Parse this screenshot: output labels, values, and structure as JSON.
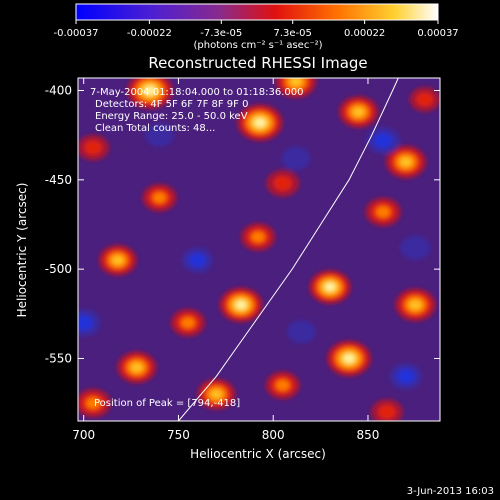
{
  "chart_data": {
    "type": "heatmap",
    "title": "Reconstructed RHESSI Image",
    "xlabel": "Heliocentric X (arcsec)",
    "ylabel": "Heliocentric Y (arcsec)",
    "xlim": [
      697,
      888
    ],
    "ylim": [
      -585,
      -393
    ],
    "xticks": [
      700,
      750,
      800,
      850
    ],
    "yticks": [
      -400,
      -450,
      -500,
      -550
    ],
    "colorbar": {
      "range": [
        -0.00037,
        0.00037
      ],
      "ticks": [
        -0.00037,
        -0.00022,
        -7.3e-05,
        7.3e-05,
        0.00022,
        0.00037
      ],
      "tick_labels": [
        "-0.00037",
        "-0.00022",
        "-7.3e-05",
        "7.3e-05",
        "0.00022",
        "0.00037"
      ],
      "units": "(photons cm⁻² s⁻¹ asec⁻²)",
      "colors": [
        "#0000ff",
        "#6a2fc8",
        "#9a2a6a",
        "#e01010",
        "#ff8000",
        "#ffe040",
        "#ffffff"
      ]
    },
    "info_lines": [
      "7-May-2004 01:18:04.000 to 01:18:36.000",
      "Detectors: 4F 5F 6F 7F 8F 9F 0",
      "Energy Range: 25.0 - 50.0 keV",
      "Clean    Total counts: 48..."
    ],
    "peak_label": "Position of Peak = [794,-418]",
    "peak": [
      794,
      -418
    ],
    "limb_curve": [
      [
        750,
        -585
      ],
      [
        770,
        -560
      ],
      [
        790,
        -530
      ],
      [
        810,
        -500
      ],
      [
        825,
        -475
      ],
      [
        840,
        -450
      ],
      [
        852,
        -425
      ],
      [
        863,
        -400
      ],
      [
        866,
        -393
      ]
    ],
    "hotspots": [
      {
        "x": 735,
        "y": -400,
        "v": 1.0
      },
      {
        "x": 793,
        "y": -418,
        "v": 1.0
      },
      {
        "x": 812,
        "y": -395,
        "v": 0.8
      },
      {
        "x": 740,
        "y": -460,
        "v": 0.55
      },
      {
        "x": 705,
        "y": -432,
        "v": 0.45
      },
      {
        "x": 805,
        "y": -452,
        "v": 0.5
      },
      {
        "x": 845,
        "y": -412,
        "v": 0.75
      },
      {
        "x": 870,
        "y": -440,
        "v": 0.8
      },
      {
        "x": 858,
        "y": -468,
        "v": 0.6
      },
      {
        "x": 718,
        "y": -495,
        "v": 0.7
      },
      {
        "x": 792,
        "y": -482,
        "v": 0.55
      },
      {
        "x": 830,
        "y": -510,
        "v": 0.85
      },
      {
        "x": 783,
        "y": -520,
        "v": 0.9
      },
      {
        "x": 755,
        "y": -530,
        "v": 0.55
      },
      {
        "x": 875,
        "y": -520,
        "v": 0.8
      },
      {
        "x": 728,
        "y": -555,
        "v": 0.75
      },
      {
        "x": 705,
        "y": -575,
        "v": 0.6
      },
      {
        "x": 840,
        "y": -550,
        "v": 0.95
      },
      {
        "x": 805,
        "y": -565,
        "v": 0.55
      },
      {
        "x": 860,
        "y": -580,
        "v": 0.45
      },
      {
        "x": 770,
        "y": -570,
        "v": 0.7
      },
      {
        "x": 880,
        "y": -405,
        "v": 0.4
      },
      {
        "x": 760,
        "y": -495,
        "v": -0.4
      },
      {
        "x": 700,
        "y": -530,
        "v": -0.5
      },
      {
        "x": 858,
        "y": -428,
        "v": -0.5
      },
      {
        "x": 870,
        "y": -560,
        "v": -0.45
      },
      {
        "x": 812,
        "y": -438,
        "v": -0.3
      },
      {
        "x": 875,
        "y": -488,
        "v": -0.35
      },
      {
        "x": 740,
        "y": -425,
        "v": -0.3
      },
      {
        "x": 815,
        "y": -535,
        "v": -0.3
      }
    ]
  },
  "footer": {
    "date": "3-Jun-2013 16:03"
  }
}
